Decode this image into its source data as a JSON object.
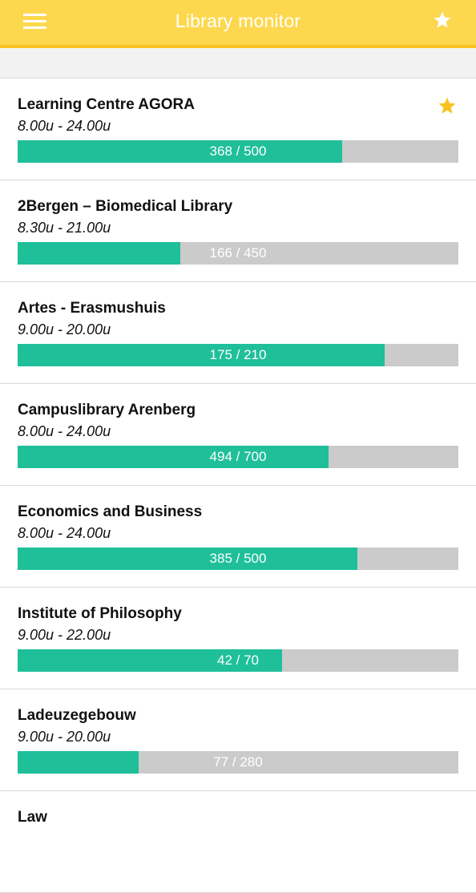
{
  "header": {
    "title": "Library monitor",
    "background_color": "#fdd84f",
    "icons": {
      "menu": "hamburger-menu-icon",
      "favorites": "star-icon"
    }
  },
  "colors": {
    "occupied": "#1fbf9a",
    "free": "#cbcbcb",
    "favorite_star": "#f8c320"
  },
  "libraries": [
    {
      "name": "Learning Centre AGORA",
      "hours": "8.00u - 24.00u",
      "occupancy": "368 / 500",
      "used": 368,
      "capacity": 500,
      "favorite": true
    },
    {
      "name": "2Bergen – Biomedical Library",
      "hours": "8.30u - 21.00u",
      "occupancy": "166 / 450",
      "used": 166,
      "capacity": 450,
      "favorite": false
    },
    {
      "name": "Artes - Erasmushuis",
      "hours": "9.00u - 20.00u",
      "occupancy": "175 / 210",
      "used": 175,
      "capacity": 210,
      "favorite": false
    },
    {
      "name": "Campuslibrary Arenberg",
      "hours": "8.00u - 24.00u",
      "occupancy": "494 / 700",
      "used": 494,
      "capacity": 700,
      "favorite": false
    },
    {
      "name": "Economics and Business",
      "hours": "8.00u - 24.00u",
      "occupancy": "385 / 500",
      "used": 385,
      "capacity": 500,
      "favorite": false
    },
    {
      "name": "Institute of Philosophy",
      "hours": "9.00u - 22.00u",
      "occupancy": "42 / 70",
      "used": 42,
      "capacity": 70,
      "favorite": false
    },
    {
      "name": "Ladeuzegebouw",
      "hours": "9.00u - 20.00u",
      "occupancy": "77 / 280",
      "used": 77,
      "capacity": 280,
      "favorite": false
    },
    {
      "name": "Law",
      "hours": "",
      "occupancy": "",
      "used": null,
      "capacity": null,
      "favorite": false
    }
  ]
}
